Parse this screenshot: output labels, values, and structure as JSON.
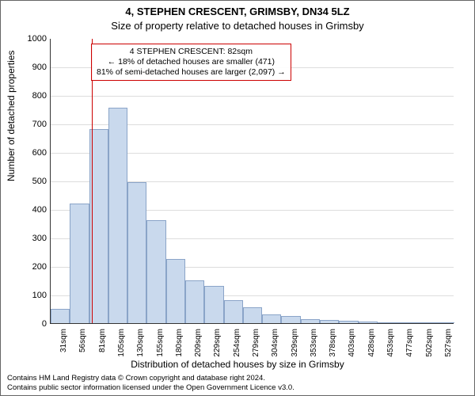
{
  "chart": {
    "type": "histogram",
    "title_main": "4, STEPHEN CRESCENT, GRIMSBY, DN34 5LZ",
    "title_sub": "Size of property relative to detached houses in Grimsby",
    "ylabel": "Number of detached properties",
    "xlabel": "Distribution of detached houses by size in Grimsby",
    "ylim": [
      0,
      1000
    ],
    "ytick_step": 100,
    "xticks": [
      "31sqm",
      "56sqm",
      "81sqm",
      "105sqm",
      "130sqm",
      "155sqm",
      "180sqm",
      "209sqm",
      "229sqm",
      "254sqm",
      "279sqm",
      "304sqm",
      "329sqm",
      "353sqm",
      "378sqm",
      "403sqm",
      "428sqm",
      "453sqm",
      "477sqm",
      "502sqm",
      "527sqm"
    ],
    "values": [
      50,
      420,
      680,
      755,
      495,
      360,
      225,
      150,
      130,
      80,
      55,
      30,
      25,
      15,
      10,
      8,
      6,
      4,
      3,
      2,
      1
    ],
    "bar_fill": "#c9d9ed",
    "bar_stroke": "#8aa4c8",
    "grid_color": "#dddddd",
    "marker_value_x": 82,
    "marker_color": "#cc0000",
    "x_min_sqm": 31,
    "x_max_sqm": 527,
    "annotation": {
      "line1": "4 STEPHEN CRESCENT: 82sqm",
      "line2": "← 18% of detached houses are smaller (471)",
      "line3": "81% of semi-detached houses are larger (2,097) →",
      "border_color": "#cc0000"
    },
    "title_fontsize": 13,
    "label_fontsize": 12,
    "tick_fontsize": 11
  },
  "footer": {
    "line1": "Contains HM Land Registry data © Crown copyright and database right 2024.",
    "line2": "Contains public sector information licensed under the Open Government Licence v3.0."
  }
}
